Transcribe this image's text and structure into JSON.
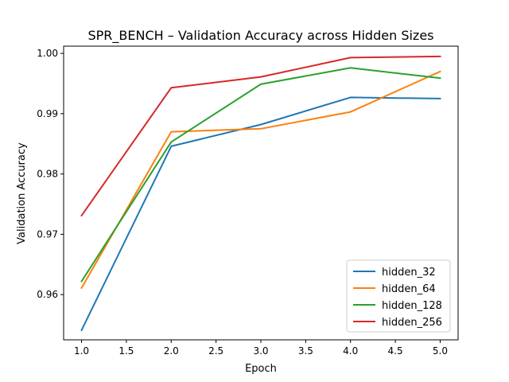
{
  "chart_data": {
    "type": "line",
    "title": "SPR_BENCH – Validation Accuracy across Hidden Sizes",
    "xlabel": "Epoch",
    "ylabel": "Validation Accuracy",
    "x": [
      1.0,
      2.0,
      3.0,
      4.0,
      5.0
    ],
    "xlim": [
      0.8,
      5.2
    ],
    "ylim": [
      0.9525,
      1.0012
    ],
    "xticks": [
      1.0,
      1.5,
      2.0,
      2.5,
      3.0,
      3.5,
      4.0,
      4.5,
      5.0
    ],
    "xtick_labels": [
      "1.0",
      "1.5",
      "2.0",
      "2.5",
      "3.0",
      "3.5",
      "4.0",
      "4.5",
      "5.0"
    ],
    "yticks": [
      0.96,
      0.97,
      0.98,
      0.99,
      1.0
    ],
    "ytick_labels": [
      "0.96",
      "0.97",
      "0.98",
      "0.99",
      "1.00"
    ],
    "grid": false,
    "legend_position": "lower-right",
    "series": [
      {
        "name": "hidden_32",
        "color": "#1f77b4",
        "values": [
          0.9541,
          0.9846,
          0.9882,
          0.9927,
          0.9925
        ]
      },
      {
        "name": "hidden_64",
        "color": "#ff7f0e",
        "values": [
          0.9611,
          0.987,
          0.9875,
          0.9903,
          0.997
        ]
      },
      {
        "name": "hidden_128",
        "color": "#2ca02c",
        "values": [
          0.9622,
          0.9853,
          0.9949,
          0.9976,
          0.9959
        ]
      },
      {
        "name": "hidden_256",
        "color": "#d62728",
        "values": [
          0.9731,
          0.9943,
          0.9961,
          0.9993,
          0.9995
        ]
      }
    ]
  }
}
